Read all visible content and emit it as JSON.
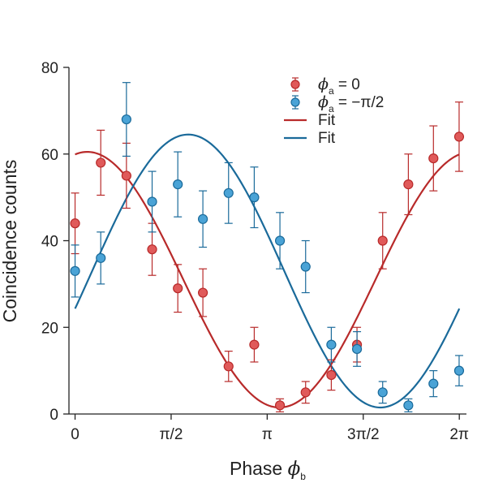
{
  "chart_data": {
    "type": "scatter",
    "xlabel": {
      "text": "Phase ",
      "symbol": "ϕ",
      "subscript": "b"
    },
    "ylabel": "Coincidence counts",
    "xlim": [
      -0.1,
      6.4
    ],
    "ylim": [
      0,
      80
    ],
    "x_ticks": [
      {
        "value": 0,
        "label": "0"
      },
      {
        "value": 1.5708,
        "label": "π/2"
      },
      {
        "value": 3.1416,
        "label": "π"
      },
      {
        "value": 4.7124,
        "label": "3π/2"
      },
      {
        "value": 6.2832,
        "label": "2π"
      }
    ],
    "y_ticks": [
      {
        "value": 0,
        "label": "0"
      },
      {
        "value": 20,
        "label": "20"
      },
      {
        "value": 40,
        "label": "40"
      },
      {
        "value": 60,
        "label": "60"
      },
      {
        "value": 80,
        "label": "80"
      }
    ],
    "grid": false,
    "legend_position": "top-right",
    "series": [
      {
        "kind": "points",
        "legend": {
          "symbol": "ϕ",
          "subscript": "a",
          "suffix": " = 0"
        },
        "color": "#e05a5a",
        "edge": "#b82a2a",
        "x": [
          0.0,
          0.42,
          0.84,
          1.26,
          1.68,
          2.09,
          2.51,
          2.93,
          3.35,
          3.77,
          4.19,
          4.61,
          5.03,
          5.45,
          5.86,
          6.28
        ],
        "y": [
          44,
          58,
          55,
          38,
          29,
          28,
          11,
          16,
          2,
          5,
          9,
          16,
          40,
          53,
          59,
          64
        ],
        "err": [
          7,
          7.5,
          7.5,
          6,
          5.5,
          5.5,
          3.5,
          4,
          1.5,
          2.5,
          3.5,
          4,
          6.5,
          7,
          7.5,
          8
        ]
      },
      {
        "kind": "points",
        "legend": {
          "symbol": "ϕ",
          "subscript": "a",
          "suffix": " = −π/2"
        },
        "color": "#4aa3d6",
        "edge": "#1a6a9a",
        "x": [
          0.0,
          0.42,
          0.84,
          1.26,
          1.68,
          2.09,
          2.51,
          2.93,
          3.35,
          3.77,
          4.19,
          4.61,
          5.03,
          5.45,
          5.86,
          6.28
        ],
        "y": [
          33,
          36,
          68,
          49,
          53,
          45,
          51,
          50,
          40,
          34,
          16,
          15,
          5,
          2,
          7,
          10
        ],
        "err": [
          6,
          6,
          8.5,
          7,
          7.5,
          6.5,
          7,
          7,
          6.5,
          6,
          4,
          4,
          2.5,
          1.5,
          3,
          3.5
        ]
      },
      {
        "kind": "line",
        "legend": "Fit",
        "color": "#b82a2a",
        "function": {
          "offset": 31,
          "amplitude": 29.5,
          "frequency": 1,
          "phase": 0.2
        }
      },
      {
        "kind": "line",
        "legend": "Fit",
        "color": "#1a6a9a",
        "function": {
          "offset": 33,
          "amplitude": 31.5,
          "frequency": 1,
          "phase": 1.85
        }
      }
    ]
  }
}
